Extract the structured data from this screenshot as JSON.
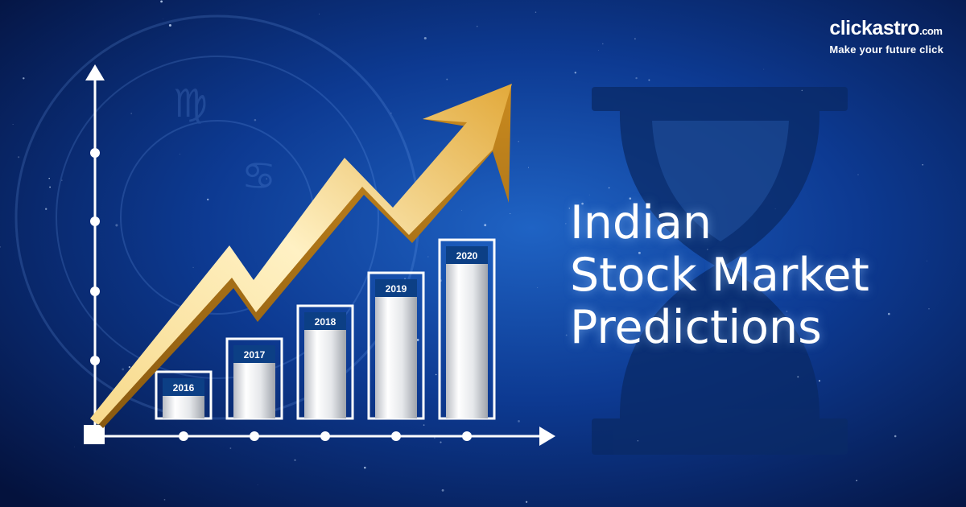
{
  "brand": {
    "name": "clickastro",
    "domain": ".com",
    "tagline": "Make your future click"
  },
  "headline": {
    "line1": "Indian",
    "line2": "Stock Market",
    "line3": "Predictions"
  },
  "chart_data": {
    "type": "bar",
    "categories": [
      "2016",
      "2017",
      "2018",
      "2019",
      "2020"
    ],
    "values": [
      1,
      2,
      3,
      4,
      5
    ],
    "trend": "up"
  },
  "colors": {
    "background": "#0a2a78",
    "arrow": "#f2c14e",
    "bars": "#e8e8e8",
    "bar_label_bg": "#0c3f85"
  },
  "icons": [
    "hourglass-icon",
    "zodiac-wheel-icon",
    "trend-arrow-icon"
  ]
}
